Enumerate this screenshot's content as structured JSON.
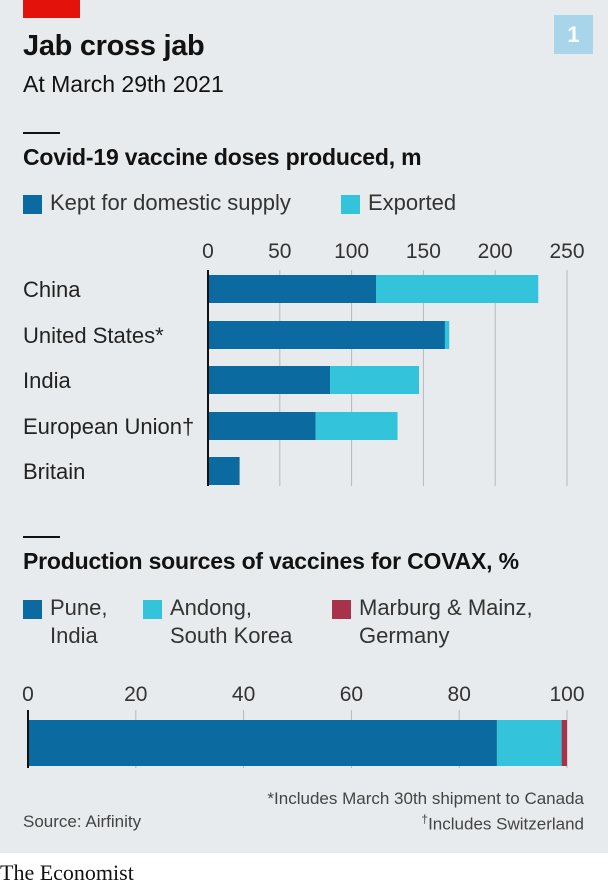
{
  "header": {
    "title": "Jab cross jab",
    "subtitle": "At March 29th 2021",
    "badge": "1"
  },
  "colors": {
    "dark_blue": "#0b6aa0",
    "light_blue": "#33c4dc",
    "maroon": "#a8324a",
    "red_tag": "#e3120b",
    "background": "#e8ebed"
  },
  "chart_data": [
    {
      "type": "bar",
      "orientation": "horizontal",
      "stacked": true,
      "title": "Covid-19 vaccine doses produced, m",
      "categories": [
        "China",
        "United States*",
        "India",
        "European Union†",
        "Britain"
      ],
      "series": [
        {
          "name": "Kept for domestic supply",
          "color": "#0b6aa0",
          "values": [
            117,
            165,
            85,
            75,
            22
          ]
        },
        {
          "name": "Exported",
          "color": "#33c4dc",
          "values": [
            113,
            3,
            62,
            57,
            0
          ]
        }
      ],
      "xlim": [
        0,
        250
      ],
      "xticks": [
        "0",
        "50",
        "100",
        "150",
        "200",
        "250"
      ],
      "tick_values": [
        0,
        50,
        100,
        150,
        200,
        250
      ],
      "grid": true,
      "legend": "top-left"
    },
    {
      "type": "bar",
      "orientation": "horizontal",
      "stacked": true,
      "title": "Production sources of vaccines for COVAX, %",
      "categories": [
        ""
      ],
      "series": [
        {
          "name": "Pune, India",
          "name_lines": [
            "Pune,",
            "India"
          ],
          "color": "#0b6aa0",
          "values": [
            87
          ]
        },
        {
          "name": "Andong, South Korea",
          "name_lines": [
            "Andong,",
            "South Korea"
          ],
          "color": "#33c4dc",
          "values": [
            12
          ]
        },
        {
          "name": "Marburg & Mainz, Germany",
          "name_lines": [
            "Marburg & Mainz,",
            "Germany"
          ],
          "color": "#a8324a",
          "values": [
            2
          ]
        }
      ],
      "xlim": [
        0,
        100
      ],
      "xticks": [
        "0",
        "20",
        "40",
        "60",
        "80",
        "100"
      ],
      "tick_values": [
        0,
        20,
        40,
        60,
        80,
        100
      ],
      "grid": true,
      "legend": "top-left"
    }
  ],
  "footer": {
    "source": "Source: Airfinity",
    "note1": "*Includes March 30th shipment to Canada",
    "note2_mark": "†",
    "note2": "Includes Switzerland",
    "brand": "The Economist"
  }
}
